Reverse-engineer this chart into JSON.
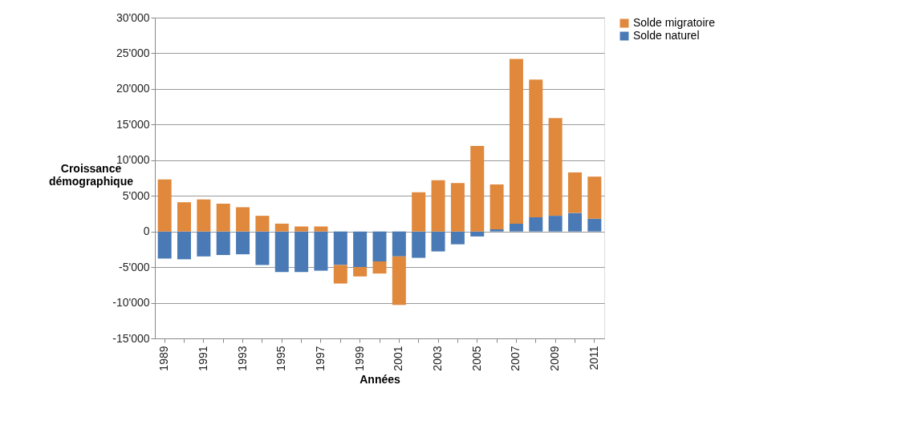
{
  "chart_data": {
    "type": "bar",
    "stacked": true,
    "xlabel": "Années",
    "ylabel": "Croissance démographique",
    "categories": [
      "1989",
      null,
      "1991",
      null,
      "1993",
      null,
      "1995",
      null,
      "1997",
      null,
      "1999",
      null,
      "2001",
      null,
      "2003",
      null,
      "2005",
      null,
      "2007",
      null,
      "2009",
      null,
      "2011"
    ],
    "series": [
      {
        "name": "Solde naturel",
        "color": "#4a7ab5",
        "values": [
          -3800,
          -3900,
          -3500,
          -3300,
          -3200,
          -4700,
          -5700,
          -5700,
          -5500,
          -4700,
          -5000,
          -4200,
          -3500,
          -3700,
          -2800,
          -1800,
          -700,
          300,
          1100,
          2000,
          2200,
          2600,
          1800
        ]
      },
      {
        "name": "Solde migratoire",
        "color": "#e0883c",
        "values": [
          7300,
          4100,
          4500,
          3900,
          3400,
          2200,
          1100,
          700,
          700,
          -2600,
          -1300,
          -1700,
          -6800,
          5500,
          7200,
          6800,
          12000,
          6300,
          23100,
          19300,
          13700,
          5700,
          5900
        ]
      }
    ],
    "ylim": [
      -15000,
      30000
    ],
    "yticks": [
      {
        "value": -15000,
        "label": "-15'000"
      },
      {
        "value": -10000,
        "label": "-10'000"
      },
      {
        "value": -5000,
        "label": "-5'000"
      },
      0,
      {
        "value": 5000,
        "label": "5'000"
      },
      {
        "value": 10000,
        "label": "10'000"
      },
      {
        "value": 15000,
        "label": "15'000"
      },
      {
        "value": 20000,
        "label": "20'000"
      },
      {
        "value": 25000,
        "label": "25'000"
      },
      {
        "value": 30000,
        "label": "30'000"
      }
    ],
    "grid": "y",
    "legend": "right"
  }
}
